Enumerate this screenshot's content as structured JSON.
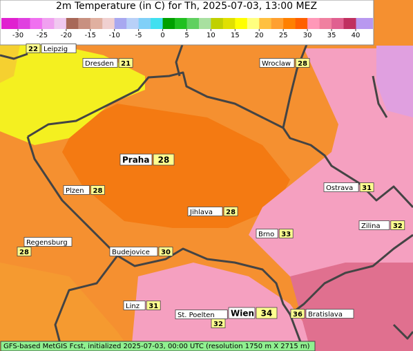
{
  "title": "2m Temperature (in C) for Th, 2025-07-03, 13:00 MEZ",
  "legend": {
    "ticks": [
      -30,
      -25,
      -20,
      -15,
      -10,
      -5,
      0,
      5,
      10,
      15,
      20,
      25,
      30,
      35,
      40
    ],
    "low_color": "#e020d0",
    "high_color": "#b898f0",
    "colors": [
      "#e040e0",
      "#f070f0",
      "#f0a0f0",
      "#f0c8f0",
      "#a86858",
      "#c89080",
      "#e0b0a0",
      "#f0d0d0",
      "#a8a8f0",
      "#b8d0f8",
      "#80d0f8",
      "#40e0f0",
      "#00a000",
      "#20c020",
      "#60d060",
      "#a8e0a0",
      "#c0d000",
      "#e0e000",
      "#ffff00",
      "#ffff80",
      "#ffc040",
      "#ffa030",
      "#ff8000",
      "#ff6000",
      "#ff98b8",
      "#f080a0",
      "#e06090",
      "#c03060"
    ]
  },
  "cities": [
    {
      "name": "Leipzig",
      "value": 22
    },
    {
      "name": "Dresden",
      "value": 21
    },
    {
      "name": "Wroclaw",
      "value": 28
    },
    {
      "name": "Praha",
      "value": 28
    },
    {
      "name": "Plzen",
      "value": 28
    },
    {
      "name": "Ostrava",
      "value": 31
    },
    {
      "name": "Jihlava",
      "value": 28
    },
    {
      "name": "Zilina",
      "value": 32
    },
    {
      "name": "Brno",
      "value": 33
    },
    {
      "name": "Regensburg",
      "value": 28
    },
    {
      "name": "Budejovice",
      "value": 30
    },
    {
      "name": "Linz",
      "value": 31
    },
    {
      "name": "St. Poelten",
      "value": 32
    },
    {
      "name": "Wien",
      "value": 34
    },
    {
      "name": "Bratislava",
      "value": 36
    }
  ],
  "footer": "GFS-based MetGIS Fcst, initialized 2025-07-03, 00:00 UTC  (resolution 1750 m X 2715 m)"
}
